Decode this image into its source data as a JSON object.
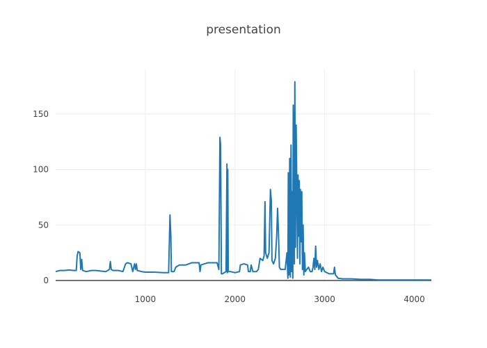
{
  "chart_data": {
    "type": "line",
    "title": "presentation",
    "xlabel": "",
    "ylabel": "",
    "xlim": [
      0,
      4190
    ],
    "ylim": [
      0,
      190
    ],
    "x_ticks": [
      1000,
      2000,
      3000,
      4000
    ],
    "y_ticks": [
      0,
      50,
      100,
      150
    ],
    "grid": true,
    "legend": "none",
    "series": [
      {
        "color": "#1f77b4",
        "points": [
          [
            0,
            8
          ],
          [
            50,
            9
          ],
          [
            100,
            9
          ],
          [
            150,
            9.5
          ],
          [
            200,
            9
          ],
          [
            230,
            9
          ],
          [
            240,
            22
          ],
          [
            250,
            26
          ],
          [
            270,
            25
          ],
          [
            280,
            10
          ],
          [
            290,
            19
          ],
          [
            300,
            9
          ],
          [
            340,
            8
          ],
          [
            400,
            9
          ],
          [
            450,
            9
          ],
          [
            500,
            8.5
          ],
          [
            560,
            8
          ],
          [
            600,
            10
          ],
          [
            610,
            17
          ],
          [
            620,
            10
          ],
          [
            640,
            9
          ],
          [
            700,
            9
          ],
          [
            750,
            8
          ],
          [
            780,
            15
          ],
          [
            800,
            16
          ],
          [
            840,
            15
          ],
          [
            860,
            8
          ],
          [
            880,
            15
          ],
          [
            890,
            10
          ],
          [
            900,
            15
          ],
          [
            910,
            9
          ],
          [
            960,
            8
          ],
          [
            1000,
            7.5
          ],
          [
            1100,
            7.5
          ],
          [
            1200,
            7
          ],
          [
            1260,
            7
          ],
          [
            1275,
            59
          ],
          [
            1285,
            40
          ],
          [
            1290,
            8
          ],
          [
            1320,
            8
          ],
          [
            1340,
            12
          ],
          [
            1380,
            14
          ],
          [
            1450,
            14
          ],
          [
            1520,
            16
          ],
          [
            1600,
            16
          ],
          [
            1610,
            8
          ],
          [
            1620,
            14
          ],
          [
            1660,
            15
          ],
          [
            1700,
            16
          ],
          [
            1760,
            16
          ],
          [
            1800,
            16
          ],
          [
            1820,
            10
          ],
          [
            1832,
            129
          ],
          [
            1840,
            122
          ],
          [
            1848,
            6
          ],
          [
            1860,
            6
          ],
          [
            1880,
            7
          ],
          [
            1900,
            8
          ],
          [
            1910,
            105
          ],
          [
            1915,
            7
          ],
          [
            1920,
            100
          ],
          [
            1925,
            8
          ],
          [
            1950,
            8
          ],
          [
            2000,
            7
          ],
          [
            2050,
            8
          ],
          [
            2060,
            14
          ],
          [
            2100,
            15
          ],
          [
            2140,
            14
          ],
          [
            2150,
            8
          ],
          [
            2170,
            8
          ],
          [
            2180,
            14
          ],
          [
            2200,
            8
          ],
          [
            2240,
            8
          ],
          [
            2260,
            10
          ],
          [
            2280,
            20
          ],
          [
            2310,
            18
          ],
          [
            2325,
            22
          ],
          [
            2335,
            71
          ],
          [
            2342,
            25
          ],
          [
            2360,
            20
          ],
          [
            2380,
            25
          ],
          [
            2395,
            82
          ],
          [
            2405,
            72
          ],
          [
            2412,
            18
          ],
          [
            2430,
            15
          ],
          [
            2450,
            20
          ],
          [
            2465,
            40
          ],
          [
            2475,
            65
          ],
          [
            2485,
            42
          ],
          [
            2495,
            12
          ],
          [
            2510,
            10
          ],
          [
            2540,
            10
          ],
          [
            2560,
            10
          ],
          [
            2580,
            25
          ],
          [
            2590,
            2
          ],
          [
            2595,
            97
          ],
          [
            2602,
            5
          ],
          [
            2610,
            110
          ],
          [
            2618,
            3
          ],
          [
            2625,
            122
          ],
          [
            2632,
            8
          ],
          [
            2638,
            80
          ],
          [
            2645,
            2
          ],
          [
            2650,
            158
          ],
          [
            2656,
            120
          ],
          [
            2662,
            15
          ],
          [
            2668,
            179
          ],
          [
            2675,
            30
          ],
          [
            2682,
            140
          ],
          [
            2690,
            80
          ],
          [
            2697,
            20
          ],
          [
            2703,
            95
          ],
          [
            2710,
            40
          ],
          [
            2717,
            90
          ],
          [
            2724,
            15
          ],
          [
            2730,
            82
          ],
          [
            2738,
            35
          ],
          [
            2745,
            80
          ],
          [
            2752,
            10
          ],
          [
            2760,
            50
          ],
          [
            2768,
            5
          ],
          [
            2775,
            25
          ],
          [
            2785,
            8
          ],
          [
            2800,
            10
          ],
          [
            2820,
            12
          ],
          [
            2840,
            8
          ],
          [
            2860,
            8
          ],
          [
            2870,
            12
          ],
          [
            2880,
            20
          ],
          [
            2890,
            10
          ],
          [
            2900,
            31
          ],
          [
            2910,
            12
          ],
          [
            2920,
            18
          ],
          [
            2935,
            10
          ],
          [
            2950,
            15
          ],
          [
            2965,
            8
          ],
          [
            2980,
            12
          ],
          [
            3000,
            8
          ],
          [
            3050,
            6
          ],
          [
            3100,
            6
          ],
          [
            3110,
            12
          ],
          [
            3120,
            5
          ],
          [
            3150,
            2
          ],
          [
            3200,
            1.5
          ],
          [
            3300,
            1.5
          ],
          [
            3400,
            1
          ],
          [
            3500,
            1
          ],
          [
            3600,
            0.5
          ],
          [
            3800,
            0.5
          ],
          [
            4000,
            0.5
          ],
          [
            4190,
            0.5
          ]
        ]
      }
    ]
  }
}
